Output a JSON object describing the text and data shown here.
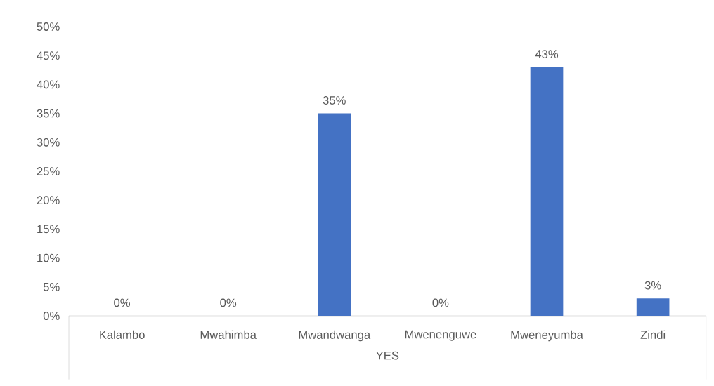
{
  "chart_data": {
    "type": "bar",
    "xlabel": "YES",
    "categories": [
      "Kalambo",
      "Mwahimba",
      "Mwandwanga",
      "Mwenenguwe",
      "Mweneyumba",
      "Zindi"
    ],
    "values": [
      0,
      0,
      35,
      0,
      43,
      3
    ],
    "color": "#4472c4",
    "value_labels": [
      "0%",
      "0%",
      "35%",
      "0%",
      "43%",
      "3%"
    ],
    "ylim": [
      0,
      50
    ],
    "yticks": [
      {
        "value": 0,
        "label": "0%"
      },
      {
        "value": 5,
        "label": "5%"
      },
      {
        "value": 10,
        "label": "10%"
      },
      {
        "value": 15,
        "label": "15%"
      },
      {
        "value": 20,
        "label": "20%"
      },
      {
        "value": 25,
        "label": "25%"
      },
      {
        "value": 30,
        "label": "30%"
      },
      {
        "value": 35,
        "label": "35%"
      },
      {
        "value": 40,
        "label": "40%"
      },
      {
        "value": 45,
        "label": "45%"
      },
      {
        "value": 50,
        "label": "50%"
      }
    ]
  }
}
